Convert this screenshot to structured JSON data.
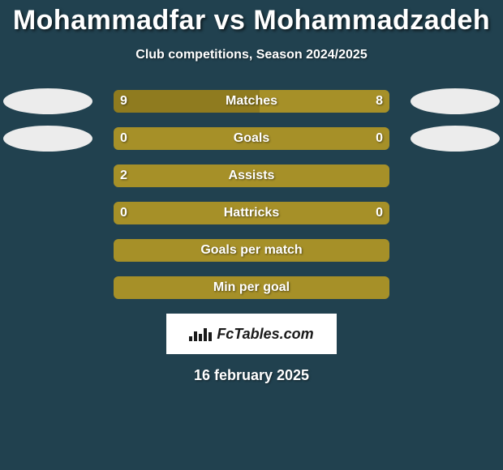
{
  "title": "Mohammadfar vs Mohammadzadeh",
  "subtitle": "Club competitions, Season 2024/2025",
  "footer_brand": "FcTables.com",
  "footer_date": "16 february 2025",
  "colors": {
    "background": "#21414f",
    "bar_primary": "#a69028",
    "bar_darker": "#8f7b1f",
    "ellipse": "#ececec",
    "text": "#ffffff",
    "badge_bg": "#ffffff",
    "badge_text": "#1a1a1a"
  },
  "stats": [
    {
      "label": "Matches",
      "left_value": "9",
      "right_value": "8",
      "left_pct": 53,
      "right_pct": 47,
      "show_ellipses": true,
      "left_color": "#8f7b1f",
      "right_color": "#a69028"
    },
    {
      "label": "Goals",
      "left_value": "0",
      "right_value": "0",
      "left_pct": 50,
      "right_pct": 50,
      "show_ellipses": true,
      "left_color": "#a69028",
      "right_color": "#a69028"
    },
    {
      "label": "Assists",
      "left_value": "2",
      "right_value": "",
      "left_pct": 100,
      "right_pct": 0,
      "show_ellipses": false,
      "left_color": "#a69028",
      "right_color": "#a69028"
    },
    {
      "label": "Hattricks",
      "left_value": "0",
      "right_value": "0",
      "left_pct": 50,
      "right_pct": 50,
      "show_ellipses": false,
      "left_color": "#a69028",
      "right_color": "#a69028"
    },
    {
      "label": "Goals per match",
      "left_value": "",
      "right_value": "",
      "left_pct": 100,
      "right_pct": 0,
      "show_ellipses": false,
      "left_color": "#a69028",
      "right_color": "#a69028"
    },
    {
      "label": "Min per goal",
      "left_value": "",
      "right_value": "",
      "left_pct": 100,
      "right_pct": 0,
      "show_ellipses": false,
      "left_color": "#a69028",
      "right_color": "#a69028"
    }
  ]
}
